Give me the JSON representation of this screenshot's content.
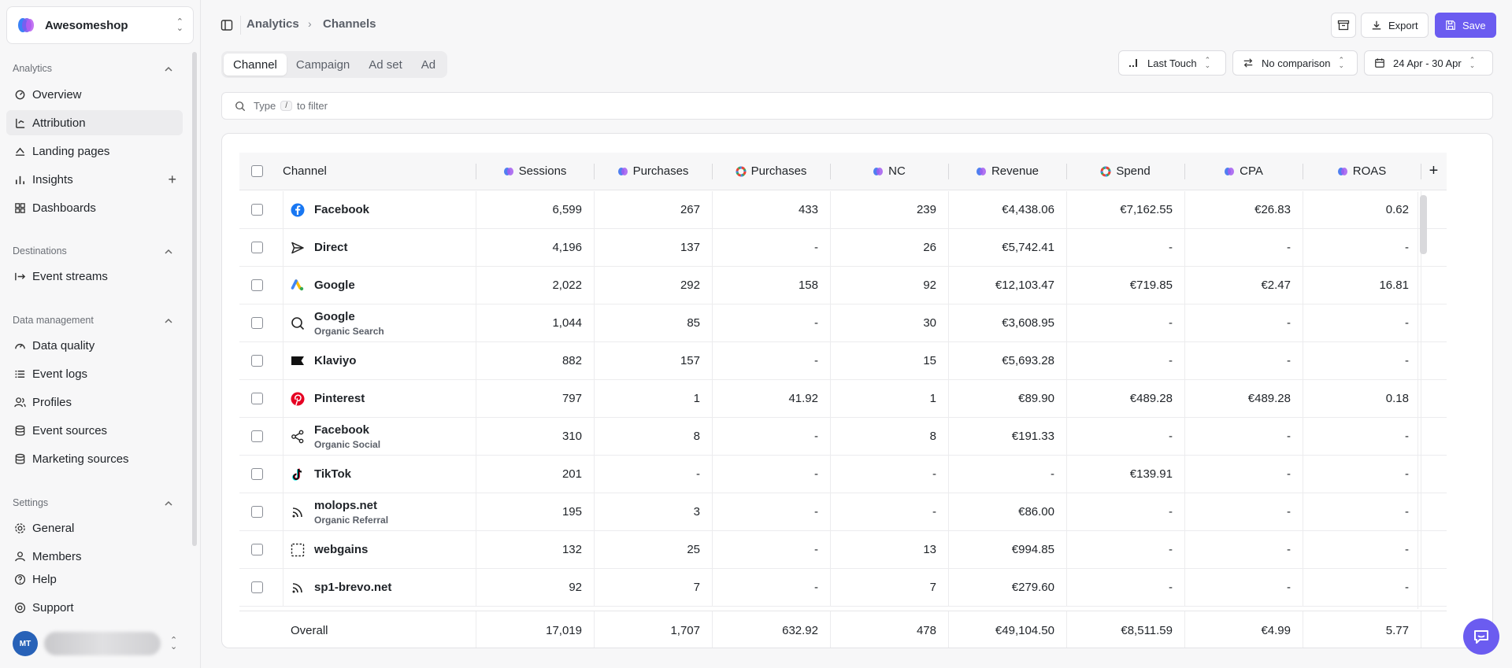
{
  "workspace": {
    "name": "Awesomeshop"
  },
  "sidebar": {
    "sections": [
      {
        "title": "Analytics",
        "items": [
          "Overview",
          "Attribution",
          "Landing pages",
          "Insights",
          "Dashboards"
        ]
      },
      {
        "title": "Destinations",
        "items": [
          "Event streams"
        ]
      },
      {
        "title": "Data management",
        "items": [
          "Data quality",
          "Event logs",
          "Profiles",
          "Event sources",
          "Marketing sources"
        ]
      },
      {
        "title": "Settings",
        "items": [
          "General",
          "Members"
        ]
      }
    ],
    "footer_items": [
      "Help",
      "Support"
    ],
    "user_initials": "MT"
  },
  "header": {
    "breadcrumb": [
      "Analytics",
      "Channels"
    ],
    "export_label": "Export",
    "save_label": "Save"
  },
  "tabs": [
    "Channel",
    "Campaign",
    "Ad set",
    "Ad"
  ],
  "controls": {
    "attribution_model": "Last Touch",
    "comparison": "No comparison",
    "date_range": "24 Apr - 30 Apr"
  },
  "filter": {
    "before": "Type",
    "key": "/",
    "after": "to filter"
  },
  "table": {
    "columns": [
      "Channel",
      "Sessions",
      "Purchases",
      "Purchases",
      "NC",
      "Revenue",
      "Spend",
      "CPA",
      "ROAS"
    ],
    "rows": [
      {
        "name": "Facebook",
        "sub": "",
        "icon": "facebook-icon",
        "values": [
          "6,599",
          "267",
          "433",
          "239",
          "€4,438.06",
          "€7,162.55",
          "€26.83",
          "0.62"
        ]
      },
      {
        "name": "Direct",
        "sub": "",
        "icon": "send-icon",
        "values": [
          "4,196",
          "137",
          "-",
          "26",
          "€5,742.41",
          "-",
          "-",
          "-"
        ]
      },
      {
        "name": "Google",
        "sub": "",
        "icon": "google-ads-icon",
        "values": [
          "2,022",
          "292",
          "158",
          "92",
          "€12,103.47",
          "€719.85",
          "€2.47",
          "16.81"
        ]
      },
      {
        "name": "Google",
        "sub": "Organic Search",
        "icon": "search-icon",
        "values": [
          "1,044",
          "85",
          "-",
          "30",
          "€3,608.95",
          "-",
          "-",
          "-"
        ]
      },
      {
        "name": "Klaviyo",
        "sub": "",
        "icon": "klaviyo-flag-icon",
        "values": [
          "882",
          "157",
          "-",
          "15",
          "€5,693.28",
          "-",
          "-",
          "-"
        ]
      },
      {
        "name": "Pinterest",
        "sub": "",
        "icon": "pinterest-icon",
        "values": [
          "797",
          "1",
          "41.92",
          "1",
          "€89.90",
          "€489.28",
          "€489.28",
          "0.18"
        ]
      },
      {
        "name": "Facebook",
        "sub": "Organic Social",
        "icon": "share-icon",
        "values": [
          "310",
          "8",
          "-",
          "8",
          "€191.33",
          "-",
          "-",
          "-"
        ]
      },
      {
        "name": "TikTok",
        "sub": "",
        "icon": "tiktok-icon",
        "values": [
          "201",
          "-",
          "-",
          "-",
          "-",
          "€139.91",
          "-",
          "-"
        ]
      },
      {
        "name": "molops.net",
        "sub": "Organic Referral",
        "icon": "rss-icon",
        "values": [
          "195",
          "3",
          "-",
          "-",
          "€86.00",
          "-",
          "-",
          "-"
        ]
      },
      {
        "name": "webgains",
        "sub": "",
        "icon": "dashed-square-icon",
        "values": [
          "132",
          "25",
          "-",
          "13",
          "€994.85",
          "-",
          "-",
          "-"
        ]
      },
      {
        "name": "sp1-brevo.net",
        "sub": "",
        "icon": "rss-icon",
        "values": [
          "92",
          "7",
          "-",
          "7",
          "€279.60",
          "-",
          "-",
          "-"
        ]
      }
    ],
    "overall": {
      "label": "Overall",
      "values": [
        "17,019",
        "1,707",
        "632.92",
        "478",
        "€49,104.50",
        "€8,511.59",
        "€4.99",
        "5.77"
      ]
    }
  }
}
